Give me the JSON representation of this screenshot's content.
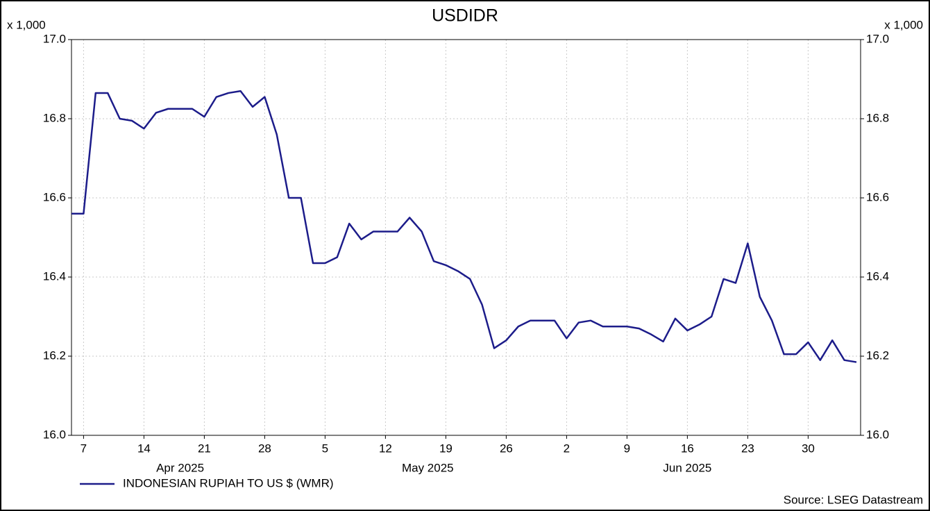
{
  "chart_data": {
    "type": "line",
    "title": "USDIDR",
    "y_unit": "x 1,000",
    "source": "Source: LSEG Datastream",
    "x": [
      "2025-04-04",
      "2025-04-07",
      "2025-04-08",
      "2025-04-09",
      "2025-04-10",
      "2025-04-11",
      "2025-04-14",
      "2025-04-15",
      "2025-04-16",
      "2025-04-17",
      "2025-04-18",
      "2025-04-21",
      "2025-04-22",
      "2025-04-23",
      "2025-04-24",
      "2025-04-25",
      "2025-04-28",
      "2025-04-29",
      "2025-04-30",
      "2025-05-01",
      "2025-05-02",
      "2025-05-05",
      "2025-05-06",
      "2025-05-07",
      "2025-05-08",
      "2025-05-09",
      "2025-05-12",
      "2025-05-13",
      "2025-05-14",
      "2025-05-15",
      "2025-05-16",
      "2025-05-19",
      "2025-05-20",
      "2025-05-21",
      "2025-05-22",
      "2025-05-23",
      "2025-05-26",
      "2025-05-27",
      "2025-05-28",
      "2025-05-29",
      "2025-05-30",
      "2025-06-02",
      "2025-06-03",
      "2025-06-04",
      "2025-06-05",
      "2025-06-06",
      "2025-06-09",
      "2025-06-10",
      "2025-06-11",
      "2025-06-12",
      "2025-06-13",
      "2025-06-16",
      "2025-06-17",
      "2025-06-18",
      "2025-06-19",
      "2025-06-20",
      "2025-06-23",
      "2025-06-24",
      "2025-06-25",
      "2025-06-26",
      "2025-06-27",
      "2025-06-30",
      "2025-07-01",
      "2025-07-02",
      "2025-07-03",
      "2025-07-04"
    ],
    "series": [
      {
        "name": "INDONESIAN RUPIAH TO US $ (WMR)",
        "color": "#1c1c8a",
        "values": [
          16.56,
          16.56,
          16.865,
          16.865,
          16.8,
          16.795,
          16.775,
          16.815,
          16.825,
          16.825,
          16.825,
          16.805,
          16.855,
          16.865,
          16.87,
          16.83,
          16.855,
          16.76,
          16.6,
          16.6,
          16.435,
          16.435,
          16.45,
          16.535,
          16.495,
          16.515,
          16.515,
          16.515,
          16.55,
          16.515,
          16.44,
          16.43,
          16.415,
          16.395,
          16.33,
          16.22,
          16.24,
          16.275,
          16.29,
          16.29,
          16.29,
          16.245,
          16.285,
          16.29,
          16.275,
          16.275,
          16.275,
          16.27,
          16.255,
          16.237,
          16.295,
          16.265,
          16.28,
          16.3,
          16.395,
          16.385,
          16.485,
          16.35,
          16.29,
          16.205,
          16.205,
          16.235,
          16.19,
          16.24,
          16.19,
          16.185
        ]
      }
    ],
    "xticks": [
      {
        "value": "2025-04-07",
        "label": "7"
      },
      {
        "value": "2025-04-14",
        "label": "14"
      },
      {
        "value": "2025-04-21",
        "label": "21"
      },
      {
        "value": "2025-04-28",
        "label": "28"
      },
      {
        "value": "2025-05-05",
        "label": "5"
      },
      {
        "value": "2025-05-12",
        "label": "12"
      },
      {
        "value": "2025-05-19",
        "label": "19"
      },
      {
        "value": "2025-05-26",
        "label": "26"
      },
      {
        "value": "2025-06-02",
        "label": "2"
      },
      {
        "value": "2025-06-09",
        "label": "9"
      },
      {
        "value": "2025-06-16",
        "label": "16"
      },
      {
        "value": "2025-06-23",
        "label": "23"
      },
      {
        "value": "2025-06-30",
        "label": "30"
      }
    ],
    "x_month_labels": [
      {
        "value": "2025-04",
        "label": "Apr 2025"
      },
      {
        "value": "2025-05",
        "label": "May 2025"
      },
      {
        "value": "2025-06",
        "label": "Jun 2025"
      }
    ],
    "ylim": [
      16,
      17
    ],
    "yticks": [
      {
        "value": 16,
        "label": "16.0"
      },
      {
        "value": 16.2,
        "label": "16.2"
      },
      {
        "value": 16.4,
        "label": "16.4"
      },
      {
        "value": 16.6,
        "label": "16.6"
      },
      {
        "value": 16.8,
        "label": "16.8"
      },
      {
        "value": 17,
        "label": "17.0"
      }
    ],
    "y2lim": [
      16,
      17
    ],
    "y2ticks": [
      {
        "value": 16,
        "label": "16.0"
      },
      {
        "value": 16.2,
        "label": "16.2"
      },
      {
        "value": 16.4,
        "label": "16.4"
      },
      {
        "value": 16.6,
        "label": "16.6"
      },
      {
        "value": 16.8,
        "label": "16.8"
      },
      {
        "value": 17,
        "label": "17.0"
      }
    ],
    "grid": true,
    "legend": "bottom-left"
  }
}
